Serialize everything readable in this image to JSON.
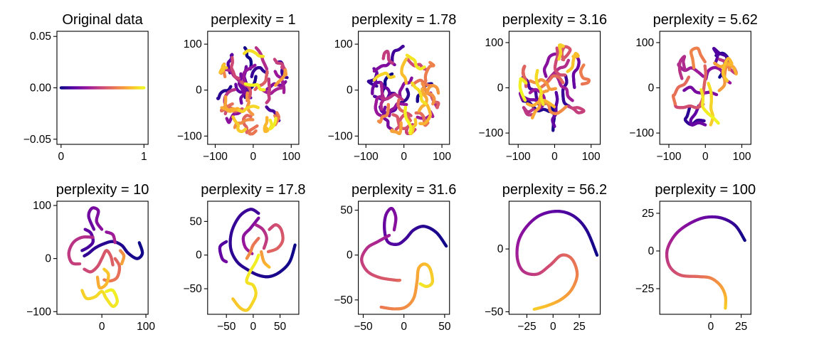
{
  "colormap": [
    "#0d0887",
    "#5b02a3",
    "#9a179b",
    "#cb4678",
    "#eb7852",
    "#fbb32f",
    "#eff821"
  ],
  "chart_data": [
    {
      "type": "line",
      "title": "Original data",
      "kind": "original",
      "xlim": [
        -0.05,
        1.05
      ],
      "ylim": [
        -0.055,
        0.055
      ],
      "xticks": [
        {
          "v": 0,
          "label": "0"
        },
        {
          "v": 1,
          "label": "1"
        }
      ],
      "yticks": [
        {
          "v": 0.05,
          "label": "0.05"
        },
        {
          "v": 0,
          "label": "0.00"
        },
        {
          "v": -0.05,
          "label": "−0.05"
        }
      ]
    },
    {
      "type": "line",
      "title": "perplexity = 1",
      "kind": "dense",
      "seed": 11,
      "pieces": 42,
      "R": 95,
      "len": 55,
      "xlim": [
        -120,
        120
      ],
      "ylim": [
        -118,
        128
      ],
      "xticks": [
        {
          "v": -100,
          "label": "−100"
        },
        {
          "v": 0,
          "label": "0"
        },
        {
          "v": 100,
          "label": "100"
        }
      ],
      "yticks": [
        {
          "v": 100,
          "label": "100"
        },
        {
          "v": 0,
          "label": "0"
        },
        {
          "v": -100,
          "label": "−100"
        }
      ]
    },
    {
      "type": "line",
      "title": "perplexity = 1.78",
      "kind": "dense",
      "seed": 23,
      "pieces": 40,
      "R": 95,
      "len": 60,
      "xlim": [
        -120,
        120
      ],
      "ylim": [
        -118,
        128
      ],
      "xticks": [
        {
          "v": -100,
          "label": "−100"
        },
        {
          "v": 0,
          "label": "0"
        },
        {
          "v": 100,
          "label": "100"
        }
      ],
      "yticks": [
        {
          "v": 100,
          "label": "100"
        },
        {
          "v": 0,
          "label": "0"
        },
        {
          "v": -100,
          "label": "−100"
        }
      ]
    },
    {
      "type": "line",
      "title": "perplexity = 3.16",
      "kind": "dense",
      "seed": 37,
      "pieces": 26,
      "R": 95,
      "len": 80,
      "xlim": [
        -125,
        125
      ],
      "ylim": [
        -125,
        125
      ],
      "xticks": [
        {
          "v": -100,
          "label": "−100"
        },
        {
          "v": 0,
          "label": "0"
        },
        {
          "v": 100,
          "label": "100"
        }
      ],
      "yticks": [
        {
          "v": 100,
          "label": "100"
        },
        {
          "v": 0,
          "label": "0"
        },
        {
          "v": -100,
          "label": "−100"
        }
      ]
    },
    {
      "type": "line",
      "title": "perplexity = 5.62",
      "kind": "dense",
      "seed": 53,
      "pieces": 18,
      "R": 90,
      "len": 95,
      "xlim": [
        -125,
        125
      ],
      "ylim": [
        -125,
        125
      ],
      "xticks": [
        {
          "v": -100,
          "label": "−100"
        },
        {
          "v": 0,
          "label": "0"
        },
        {
          "v": 100,
          "label": "100"
        }
      ],
      "yticks": [
        {
          "v": 100,
          "label": "100"
        },
        {
          "v": 0,
          "label": "0"
        },
        {
          "v": -100,
          "label": "−100"
        }
      ]
    },
    {
      "type": "line",
      "title": "perplexity = 10",
      "kind": "paths",
      "xlim": [
        -102,
        105
      ],
      "ylim": [
        -105,
        108
      ],
      "xticks": [
        {
          "v": 0,
          "label": "0"
        },
        {
          "v": 100,
          "label": "100"
        }
      ],
      "yticks": [
        {
          "v": 100,
          "label": "100"
        },
        {
          "v": 0,
          "label": "0"
        },
        {
          "v": -100,
          "label": "−100"
        }
      ],
      "paths": [
        [
          [
            85,
            30
          ],
          [
            92,
            10
          ],
          [
            80,
            0
          ],
          [
            60,
            10
          ],
          [
            45,
            25
          ],
          [
            25,
            32
          ],
          [
            5,
            28
          ],
          [
            -15,
            20
          ],
          [
            -30,
            10
          ],
          [
            -40,
            5
          ]
        ],
        [
          [
            -45,
            15
          ],
          [
            -30,
            22
          ],
          [
            -20,
            32
          ],
          [
            -25,
            48
          ],
          [
            -38,
            55
          ]
        ],
        [
          [
            -18,
            55
          ],
          [
            -30,
            80
          ],
          [
            -22,
            95
          ],
          [
            -8,
            90
          ],
          [
            -12,
            70
          ],
          [
            0,
            55
          ]
        ],
        [
          [
            10,
            50
          ],
          [
            25,
            45
          ],
          [
            30,
            30
          ]
        ],
        [
          [
            -20,
            40
          ],
          [
            -45,
            40
          ],
          [
            -65,
            30
          ],
          [
            -75,
            10
          ],
          [
            -68,
            -8
          ],
          [
            -50,
            -10
          ]
        ],
        [
          [
            -40,
            -20
          ],
          [
            -25,
            -25
          ],
          [
            -10,
            -15
          ],
          [
            0,
            0
          ],
          [
            10,
            15
          ],
          [
            20,
            5
          ],
          [
            25,
            -12
          ]
        ],
        [
          [
            30,
            0
          ],
          [
            40,
            -15
          ],
          [
            35,
            -35
          ],
          [
            20,
            -42
          ],
          [
            5,
            -40
          ]
        ],
        [
          [
            42,
            15
          ],
          [
            50,
            5
          ],
          [
            45,
            -10
          ]
        ],
        [
          [
            -10,
            -35
          ],
          [
            -5,
            -55
          ],
          [
            10,
            -48
          ],
          [
            15,
            -30
          ],
          [
            5,
            -20
          ]
        ],
        [
          [
            -45,
            -60
          ],
          [
            -35,
            -75
          ],
          [
            -15,
            -72
          ],
          [
            0,
            -62
          ],
          [
            10,
            -75
          ],
          [
            25,
            -90
          ],
          [
            35,
            -80
          ],
          [
            25,
            -60
          ],
          [
            10,
            -62
          ]
        ]
      ]
    },
    {
      "type": "line",
      "title": "perplexity = 17.8",
      "kind": "paths",
      "xlim": [
        -85,
        85
      ],
      "ylim": [
        -88,
        80
      ],
      "xticks": [
        {
          "v": -50,
          "label": "−50"
        },
        {
          "v": 0,
          "label": "0"
        },
        {
          "v": 50,
          "label": "50"
        }
      ],
      "yticks": [
        {
          "v": 50,
          "label": "50"
        },
        {
          "v": 0,
          "label": "0"
        },
        {
          "v": -50,
          "label": "−50"
        }
      ],
      "paths": [
        [
          [
            78,
            15
          ],
          [
            68,
            -10
          ],
          [
            50,
            -25
          ],
          [
            30,
            -32
          ],
          [
            10,
            -30
          ],
          [
            -10,
            -22
          ],
          [
            -30,
            -10
          ],
          [
            -42,
            10
          ],
          [
            -40,
            35
          ],
          [
            -25,
            58
          ],
          [
            -5,
            68
          ],
          [
            10,
            62
          ]
        ],
        [
          [
            -50,
            20
          ],
          [
            -62,
            12
          ],
          [
            -58,
            -5
          ],
          [
            -50,
            -10
          ]
        ],
        [
          [
            10,
            55
          ],
          [
            -5,
            40
          ],
          [
            -18,
            28
          ],
          [
            -15,
            12
          ],
          [
            -2,
            2
          ]
        ],
        [
          [
            5,
            45
          ],
          [
            18,
            38
          ],
          [
            25,
            25
          ],
          [
            20,
            10
          ]
        ],
        [
          [
            30,
            38
          ],
          [
            42,
            45
          ],
          [
            52,
            38
          ],
          [
            55,
            22
          ],
          [
            45,
            10
          ],
          [
            28,
            5
          ]
        ],
        [
          [
            10,
            25
          ],
          [
            0,
            15
          ],
          [
            -5,
            5
          ],
          [
            -12,
            -5
          ]
        ],
        [
          [
            15,
            5
          ],
          [
            20,
            -10
          ],
          [
            30,
            -18
          ]
        ],
        [
          [
            -38,
            -65
          ],
          [
            -25,
            -78
          ],
          [
            -12,
            -82
          ],
          [
            -2,
            -72
          ],
          [
            5,
            -58
          ],
          [
            0,
            -45
          ],
          [
            -12,
            -40
          ],
          [
            -8,
            -28
          ],
          [
            5,
            -10
          ],
          [
            10,
            0
          ]
        ]
      ]
    },
    {
      "type": "line",
      "title": "perplexity = 31.6",
      "kind": "paths",
      "xlim": [
        -56,
        56
      ],
      "ylim": [
        -66,
        60
      ],
      "xticks": [
        {
          "v": -50,
          "label": "−50"
        },
        {
          "v": 0,
          "label": "0"
        },
        {
          "v": 50,
          "label": "50"
        }
      ],
      "yticks": [
        {
          "v": 50,
          "label": "50"
        },
        {
          "v": 0,
          "label": "0"
        },
        {
          "v": -50,
          "label": "−50"
        }
      ],
      "paths": [
        [
          [
            52,
            10
          ],
          [
            40,
            25
          ],
          [
            25,
            32
          ],
          [
            12,
            28
          ],
          [
            2,
            18
          ],
          [
            -8,
            12
          ],
          [
            -20,
            15
          ],
          [
            -24,
            30
          ],
          [
            -22,
            45
          ],
          [
            -15,
            52
          ],
          [
            -10,
            42
          ],
          [
            -12,
            28
          ]
        ],
        [
          [
            -18,
            22
          ],
          [
            -32,
            15
          ],
          [
            -45,
            8
          ],
          [
            -52,
            -5
          ],
          [
            -45,
            -18
          ],
          [
            -30,
            -25
          ],
          [
            -10,
            -28
          ],
          [
            -5,
            -28
          ]
        ],
        [
          [
            -28,
            -58
          ],
          [
            -12,
            -60
          ],
          [
            2,
            -58
          ],
          [
            12,
            -48
          ],
          [
            16,
            -30
          ],
          [
            18,
            -15
          ],
          [
            25,
            -10
          ],
          [
            32,
            -15
          ],
          [
            35,
            -30
          ],
          [
            28,
            -35
          ],
          [
            20,
            -32
          ]
        ]
      ]
    },
    {
      "type": "line",
      "title": "perplexity = 56.2",
      "kind": "paths",
      "xlim": [
        -42,
        45
      ],
      "ylim": [
        -52,
        38
      ],
      "xticks": [
        {
          "v": -25,
          "label": "−25"
        },
        {
          "v": 0,
          "label": "0"
        },
        {
          "v": 25,
          "label": "25"
        }
      ],
      "yticks": [
        {
          "v": 0,
          "label": "0"
        },
        {
          "v": -50,
          "label": "−50"
        }
      ],
      "paths": [
        [
          [
            42,
            -5
          ],
          [
            32,
            15
          ],
          [
            20,
            26
          ],
          [
            5,
            30
          ],
          [
            -12,
            27
          ],
          [
            -25,
            18
          ],
          [
            -33,
            6
          ],
          [
            -34,
            -8
          ],
          [
            -28,
            -18
          ],
          [
            -15,
            -20
          ],
          [
            -3,
            -13
          ],
          [
            8,
            -5
          ],
          [
            18,
            -8
          ],
          [
            23,
            -20
          ],
          [
            18,
            -32
          ],
          [
            8,
            -40
          ],
          [
            -5,
            -45
          ],
          [
            -18,
            -48
          ]
        ]
      ]
    },
    {
      "type": "line",
      "title": "perplexity = 100",
      "kind": "paths",
      "xlim": [
        -42,
        33
      ],
      "ylim": [
        -42,
        33
      ],
      "xticks": [
        {
          "v": 0,
          "label": "0"
        },
        {
          "v": 25,
          "label": "25"
        }
      ],
      "yticks": [
        {
          "v": 25,
          "label": "25"
        },
        {
          "v": 0,
          "label": "0"
        },
        {
          "v": -25,
          "label": "−25"
        }
      ],
      "paths": [
        [
          [
            28,
            7
          ],
          [
            20,
            17
          ],
          [
            8,
            22
          ],
          [
            -6,
            22
          ],
          [
            -20,
            17
          ],
          [
            -30,
            10
          ],
          [
            -36,
            0
          ],
          [
            -34,
            -10
          ],
          [
            -25,
            -16
          ],
          [
            -10,
            -17
          ],
          [
            0,
            -18
          ],
          [
            8,
            -23
          ],
          [
            12,
            -30
          ],
          [
            12,
            -38
          ]
        ]
      ]
    }
  ]
}
